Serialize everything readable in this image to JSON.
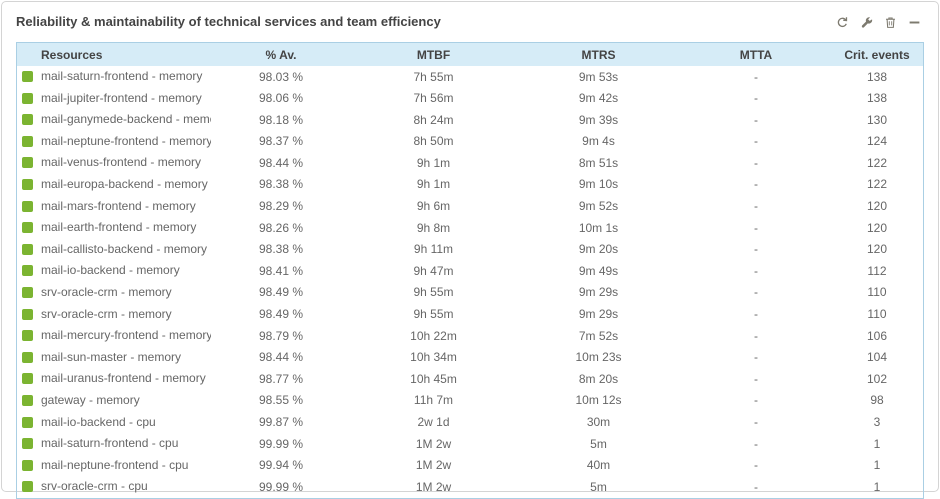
{
  "panel": {
    "title": "Reliability & maintainability of technical services and team efficiency",
    "actions": [
      {
        "icon": "refresh-icon"
      },
      {
        "icon": "wrench-settings-icon"
      },
      {
        "icon": "trash-delete-icon"
      },
      {
        "icon": "minus-collapse-icon"
      }
    ]
  },
  "table": {
    "columns": [
      "Resources",
      "% Av.",
      "MTBF",
      "MTRS",
      "MTTA",
      "Crit. events"
    ],
    "rows": [
      {
        "status": "up",
        "resource": "mail-saturn-frontend - memory",
        "availability": "98.03 %",
        "mtbf": "7h 55m",
        "mtrs": "9m 53s",
        "mtta": "-",
        "crit_events": "138"
      },
      {
        "status": "up",
        "resource": "mail-jupiter-frontend - memory",
        "availability": "98.06 %",
        "mtbf": "7h 56m",
        "mtrs": "9m 42s",
        "mtta": "-",
        "crit_events": "138"
      },
      {
        "status": "up",
        "resource": "mail-ganymede-backend - memory",
        "availability": "98.18 %",
        "mtbf": "8h 24m",
        "mtrs": "9m 39s",
        "mtta": "-",
        "crit_events": "130"
      },
      {
        "status": "up",
        "resource": "mail-neptune-frontend - memory",
        "availability": "98.37 %",
        "mtbf": "8h 50m",
        "mtrs": "9m 4s",
        "mtta": "-",
        "crit_events": "124"
      },
      {
        "status": "up",
        "resource": "mail-venus-frontend - memory",
        "availability": "98.44 %",
        "mtbf": "9h 1m",
        "mtrs": "8m 51s",
        "mtta": "-",
        "crit_events": "122"
      },
      {
        "status": "up",
        "resource": "mail-europa-backend - memory",
        "availability": "98.38 %",
        "mtbf": "9h 1m",
        "mtrs": "9m 10s",
        "mtta": "-",
        "crit_events": "122"
      },
      {
        "status": "up",
        "resource": "mail-mars-frontend - memory",
        "availability": "98.29 %",
        "mtbf": "9h 6m",
        "mtrs": "9m 52s",
        "mtta": "-",
        "crit_events": "120"
      },
      {
        "status": "up",
        "resource": "mail-earth-frontend - memory",
        "availability": "98.26 %",
        "mtbf": "9h 8m",
        "mtrs": "10m 1s",
        "mtta": "-",
        "crit_events": "120"
      },
      {
        "status": "up",
        "resource": "mail-callisto-backend - memory",
        "availability": "98.38 %",
        "mtbf": "9h 11m",
        "mtrs": "9m 20s",
        "mtta": "-",
        "crit_events": "120"
      },
      {
        "status": "up",
        "resource": "mail-io-backend - memory",
        "availability": "98.41 %",
        "mtbf": "9h 47m",
        "mtrs": "9m 49s",
        "mtta": "-",
        "crit_events": "112"
      },
      {
        "status": "up",
        "resource": "srv-oracle-crm - memory",
        "availability": "98.49 %",
        "mtbf": "9h 55m",
        "mtrs": "9m 29s",
        "mtta": "-",
        "crit_events": "110"
      },
      {
        "status": "up",
        "resource": "srv-oracle-crm - memory",
        "availability": "98.49 %",
        "mtbf": "9h 55m",
        "mtrs": "9m 29s",
        "mtta": "-",
        "crit_events": "110"
      },
      {
        "status": "up",
        "resource": "mail-mercury-frontend - memory",
        "availability": "98.79 %",
        "mtbf": "10h 22m",
        "mtrs": "7m 52s",
        "mtta": "-",
        "crit_events": "106"
      },
      {
        "status": "up",
        "resource": "mail-sun-master - memory",
        "availability": "98.44 %",
        "mtbf": "10h 34m",
        "mtrs": "10m 23s",
        "mtta": "-",
        "crit_events": "104"
      },
      {
        "status": "up",
        "resource": "mail-uranus-frontend - memory",
        "availability": "98.77 %",
        "mtbf": "10h 45m",
        "mtrs": "8m 20s",
        "mtta": "-",
        "crit_events": "102"
      },
      {
        "status": "up",
        "resource": "gateway - memory",
        "availability": "98.55 %",
        "mtbf": "11h 7m",
        "mtrs": "10m 12s",
        "mtta": "-",
        "crit_events": "98"
      },
      {
        "status": "up",
        "resource": "mail-io-backend - cpu",
        "availability": "99.87 %",
        "mtbf": "2w 1d",
        "mtrs": "30m",
        "mtta": "-",
        "crit_events": "3"
      },
      {
        "status": "up",
        "resource": "mail-saturn-frontend - cpu",
        "availability": "99.99 %",
        "mtbf": "1M 2w",
        "mtrs": "5m",
        "mtta": "-",
        "crit_events": "1"
      },
      {
        "status": "up",
        "resource": "mail-neptune-frontend - cpu",
        "availability": "99.94 %",
        "mtbf": "1M 2w",
        "mtrs": "40m",
        "mtta": "-",
        "crit_events": "1"
      },
      {
        "status": "up",
        "resource": "srv-oracle-crm - cpu",
        "availability": "99.99 %",
        "mtbf": "1M 2w",
        "mtrs": "5m",
        "mtta": "-",
        "crit_events": "1"
      }
    ]
  },
  "colors": {
    "status_up": "#7BB431",
    "header_bg": "#D6ECF7",
    "table_border": "#AACFE4",
    "panel_border": "#D4D4D4",
    "icon": "#7D7A6F",
    "text": "#666666",
    "header_text": "#444444"
  }
}
